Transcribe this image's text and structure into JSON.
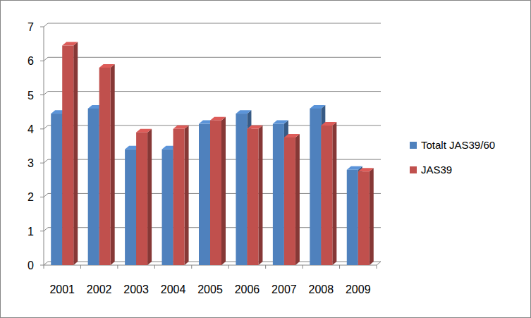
{
  "chart_data": {
    "type": "bar",
    "categories": [
      "2001",
      "2002",
      "2003",
      "2004",
      "2005",
      "2006",
      "2007",
      "2008",
      "2009"
    ],
    "series": [
      {
        "name": "Totalt JAS39/60",
        "color": "#4f81bd",
        "values": [
          4.45,
          4.6,
          3.4,
          3.4,
          4.15,
          4.45,
          4.15,
          4.6,
          2.8
        ]
      },
      {
        "name": "JAS39",
        "color": "#c0504d",
        "values": [
          6.45,
          5.8,
          3.9,
          4.0,
          4.25,
          4.0,
          3.75,
          4.1,
          2.75
        ]
      }
    ],
    "ylim": [
      0,
      7
    ],
    "yticks": [
      0,
      1,
      2,
      3,
      4,
      5,
      6,
      7
    ],
    "grid": true,
    "legend": "right"
  }
}
